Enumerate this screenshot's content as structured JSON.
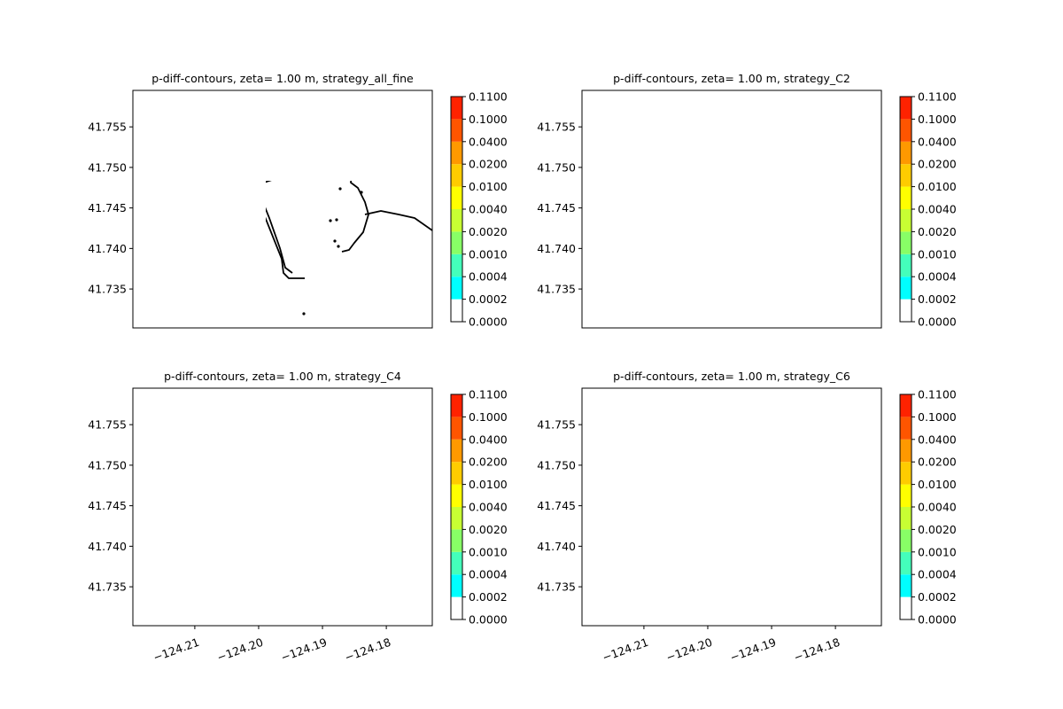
{
  "chart_data": [
    {
      "type": "heatmap",
      "title": "p-diff-contours, zeta= 1.00 m, strategy_all_fine",
      "xlabel": "",
      "ylabel": "",
      "xlim": [
        -124.2197,
        -124.1728
      ],
      "ylim": [
        41.7302,
        41.7595
      ],
      "x_ticks": [
        -124.21,
        -124.2,
        -124.19,
        -124.18
      ],
      "x_tick_labels": [],
      "y_ticks": [
        41.735,
        41.74,
        41.745,
        41.75,
        41.755
      ],
      "y_tick_labels": [
        "41.735",
        "41.740",
        "41.745",
        "41.750",
        "41.755"
      ],
      "fill": "none"
    },
    {
      "type": "heatmap",
      "title": "p-diff-contours, zeta= 1.00 m, strategy_C2",
      "xlabel": "",
      "ylabel": "",
      "xlim": [
        -124.2197,
        -124.1728
      ],
      "ylim": [
        41.7302,
        41.7595
      ],
      "x_ticks": [
        -124.21,
        -124.2,
        -124.19,
        -124.18
      ],
      "x_tick_labels": [],
      "y_ticks": [
        41.735,
        41.74,
        41.745,
        41.75,
        41.755
      ],
      "y_tick_labels": [
        "41.735",
        "41.740",
        "41.745",
        "41.750",
        "41.755"
      ],
      "fill": "C2"
    },
    {
      "type": "heatmap",
      "title": "p-diff-contours, zeta= 1.00 m, strategy_C4",
      "xlabel": "",
      "ylabel": "",
      "xlim": [
        -124.2197,
        -124.1728
      ],
      "ylim": [
        41.7302,
        41.7595
      ],
      "x_ticks": [
        -124.21,
        -124.2,
        -124.19,
        -124.18
      ],
      "x_tick_labels": [
        "−124.21",
        "−124.20",
        "−124.19",
        "−124.18"
      ],
      "y_ticks": [
        41.735,
        41.74,
        41.745,
        41.75,
        41.755
      ],
      "y_tick_labels": [
        "41.735",
        "41.740",
        "41.745",
        "41.750",
        "41.755"
      ],
      "fill": "C4"
    },
    {
      "type": "heatmap",
      "title": "p-diff-contours, zeta= 1.00 m, strategy_C6",
      "xlabel": "",
      "ylabel": "",
      "xlim": [
        -124.2197,
        -124.1728
      ],
      "ylim": [
        41.7302,
        41.7595
      ],
      "x_ticks": [
        -124.21,
        -124.2,
        -124.19,
        -124.18
      ],
      "x_tick_labels": [
        "−124.21",
        "−124.20",
        "−124.19",
        "−124.18"
      ],
      "y_ticks": [
        41.735,
        41.74,
        41.745,
        41.75,
        41.755
      ],
      "y_tick_labels": [
        "41.735",
        "41.740",
        "41.745",
        "41.750",
        "41.755"
      ],
      "fill": "C6"
    }
  ],
  "colorbar": {
    "levels": [
      "0.0000",
      "0.0002",
      "0.0004",
      "0.0010",
      "0.0020",
      "0.0040",
      "0.0100",
      "0.0200",
      "0.0400",
      "0.1000",
      "0.1100"
    ],
    "colors": [
      "#ffffff",
      "#00ffff",
      "#44ffbb",
      "#88ff66",
      "#c8ff33",
      "#ffff00",
      "#ffcc00",
      "#ff9900",
      "#ff5500",
      "#ff2200"
    ]
  },
  "coastline_color": "#000000"
}
